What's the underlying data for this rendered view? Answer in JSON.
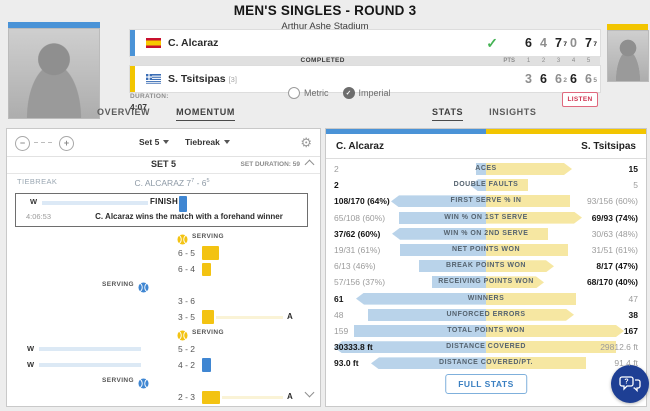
{
  "header": {
    "title": "MEN'S SINGLES - ROUND 3",
    "venue": "Arthur Ashe Stadium"
  },
  "scoreboard": {
    "status": "COMPLETED",
    "pts_label": "PTS",
    "set_numbers": [
      "1",
      "2",
      "3",
      "4",
      "5"
    ],
    "players": [
      {
        "name": "C. Alcaraz",
        "seed": "",
        "flag": "spain",
        "winner": true,
        "sets": [
          {
            "v": "6",
            "sup": "",
            "won": true
          },
          {
            "v": "4",
            "sup": "",
            "won": false
          },
          {
            "v": "7",
            "sup": "7",
            "won": true
          },
          {
            "v": "0",
            "sup": "",
            "won": false
          },
          {
            "v": "7",
            "sup": "7",
            "won": true
          }
        ]
      },
      {
        "name": "S. Tsitsipas",
        "seed": "[3]",
        "flag": "greece",
        "winner": false,
        "sets": [
          {
            "v": "3",
            "sup": "",
            "won": false
          },
          {
            "v": "6",
            "sup": "",
            "won": true
          },
          {
            "v": "6",
            "sup": "2",
            "won": false
          },
          {
            "v": "6",
            "sup": "",
            "won": true
          },
          {
            "v": "6",
            "sup": "5",
            "won": false
          }
        ]
      }
    ],
    "duration_label": "DURATION:",
    "duration": "4:07",
    "units": [
      {
        "label": "Metric",
        "selected": false
      },
      {
        "label": "Imperial",
        "selected": true
      }
    ],
    "listen_label": "LISTEN"
  },
  "tabs": {
    "left": [
      {
        "label": "OVERVIEW",
        "active": false
      },
      {
        "label": "MOMENTUM",
        "active": true
      }
    ],
    "right": [
      {
        "label": "STATS",
        "active": true
      },
      {
        "label": "INSIGHTS",
        "active": false
      }
    ]
  },
  "momentum": {
    "set_selector": "Set 5",
    "view_selector": "Tiebreak",
    "set_title": "SET 5",
    "set_duration": "SET DURATION: 59",
    "section_label": "TIEBREAK",
    "section_score": {
      "pre": "C. ALCARAZ 7",
      "sup_a": "7",
      "mid": " - 6",
      "sup_b": "5"
    },
    "highlight": {
      "marker": "W",
      "finish_label": "FINISH",
      "time": "4:06:53",
      "text": "C. Alcaraz wins the match with a forehand winner"
    },
    "serving_label": "SERVING",
    "rows": [
      {
        "kind": "serve",
        "side": "right",
        "ball": "yellow"
      },
      {
        "kind": "point",
        "score": "6 - 5",
        "bar": {
          "color": "yellow",
          "w": 17,
          "h": 14
        }
      },
      {
        "kind": "point",
        "score": "6 - 4",
        "bar": {
          "color": "yellow",
          "w": 9,
          "h": 13
        }
      },
      {
        "kind": "serve",
        "side": "left",
        "ball": "blue"
      },
      {
        "kind": "point",
        "score": "3 - 6"
      },
      {
        "kind": "point",
        "score": "3 - 5",
        "bar": {
          "color": "yellow",
          "w": 12,
          "h": 14
        },
        "tail": "A"
      },
      {
        "kind": "serve",
        "side": "right",
        "ball": "yellow"
      },
      {
        "kind": "point",
        "score": "5 - 2",
        "marker": "W"
      },
      {
        "kind": "point",
        "score": "4 - 2",
        "marker": "W",
        "bar": {
          "color": "blue",
          "w": 9,
          "h": 14
        }
      },
      {
        "kind": "serve",
        "side": "left",
        "ball": "blue"
      },
      {
        "kind": "point",
        "score": "2 - 3",
        "bar": {
          "color": "yellow",
          "w": 18,
          "h": 13
        },
        "tail": "A"
      }
    ]
  },
  "stats": {
    "left_player": "C. Alcaraz",
    "right_player": "S. Tsitsipas",
    "rows": [
      {
        "label": "ACES",
        "lv": "2",
        "rv": "15",
        "lb": false,
        "rb": true,
        "lw": 10,
        "rw": 86,
        "ltip": false,
        "rtip": true
      },
      {
        "label": "DOUBLE FAULTS",
        "lv": "2",
        "rv": "5",
        "lb": true,
        "rb": false,
        "lw": 16,
        "rw": 42,
        "ltip": true,
        "rtip": false
      },
      {
        "label": "FIRST SERVE % IN",
        "lv": "108/170 (64%)",
        "rv": "93/156 (60%)",
        "lb": true,
        "rb": false,
        "lw": 95,
        "rw": 84,
        "ltip": true,
        "rtip": false
      },
      {
        "label": "WIN % ON 1ST SERVE",
        "lv": "65/108 (60%)",
        "rv": "69/93 (74%)",
        "lb": false,
        "rb": true,
        "lw": 87,
        "rw": 96,
        "ltip": false,
        "rtip": true
      },
      {
        "label": "WIN % ON 2ND SERVE",
        "lv": "37/62 (60%)",
        "rv": "30/63 (48%)",
        "lb": true,
        "rb": false,
        "lw": 94,
        "rw": 62,
        "ltip": true,
        "rtip": false
      },
      {
        "label": "NET POINTS WON",
        "lv": "19/31 (61%)",
        "rv": "31/51 (61%)",
        "lb": false,
        "rb": false,
        "lw": 86,
        "rw": 82,
        "ltip": false,
        "rtip": false
      },
      {
        "label": "BREAK POINTS WON",
        "lv": "6/13 (46%)",
        "rv": "8/17 (47%)",
        "lb": false,
        "rb": true,
        "lw": 67,
        "rw": 68,
        "ltip": false,
        "rtip": true
      },
      {
        "label": "RECEIVING POINTS WON",
        "lv": "57/156 (37%)",
        "rv": "68/170 (40%)",
        "lb": false,
        "rb": true,
        "lw": 54,
        "rw": 58,
        "ltip": false,
        "rtip": true
      },
      {
        "label": "WINNERS",
        "lv": "61",
        "rv": "47",
        "lb": true,
        "rb": false,
        "lw": 130,
        "rw": 90,
        "ltip": true,
        "rtip": false
      },
      {
        "label": "UNFORCED ERRORS",
        "lv": "48",
        "rv": "38",
        "lb": false,
        "rb": true,
        "lw": 118,
        "rw": 88,
        "ltip": false,
        "rtip": true
      },
      {
        "label": "TOTAL POINTS WON",
        "lv": "159",
        "rv": "167",
        "lb": false,
        "rb": true,
        "lw": 132,
        "rw": 138,
        "ltip": false,
        "rtip": true
      },
      {
        "label": "DISTANCE COVERED",
        "lv": "30333.8 ft",
        "rv": "29812.6 ft",
        "lb": true,
        "rb": false,
        "lw": 152,
        "rw": 130,
        "ltip": true,
        "rtip": false
      },
      {
        "label": "DISTANCE COVERED/PT.",
        "lv": "93.0 ft",
        "rv": "91.4 ft",
        "lb": true,
        "rb": false,
        "lw": 115,
        "rw": 100,
        "ltip": true,
        "rtip": false
      }
    ],
    "full_stats_label": "FULL STATS"
  },
  "colors": {
    "alcaraz_blue": "#4a93d7",
    "tsitsipas_yellow": "#f2c500",
    "bar_light_blue": "#b9d3ea",
    "bar_light_yellow": "#f6e7a2",
    "check_green": "#45b354",
    "listen_red": "#cf3350",
    "chat_navy": "#1e3f94"
  }
}
